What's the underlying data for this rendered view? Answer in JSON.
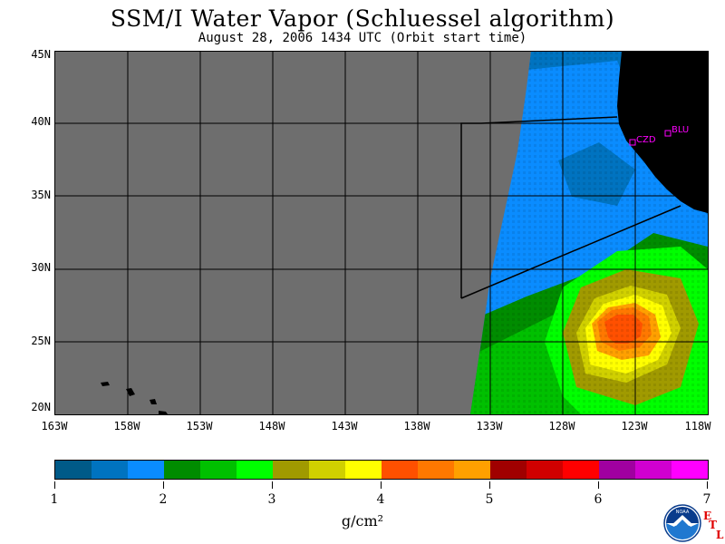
{
  "header": {
    "title": "SSM/I Water Vapor (Schluessel algorithm)",
    "subtitle": "August 28, 2006  1434 UTC  (Orbit start time)"
  },
  "map": {
    "lat_labels": [
      "45N",
      "40N",
      "35N",
      "30N",
      "25N",
      "20N"
    ],
    "lon_labels": [
      "163W",
      "158W",
      "153W",
      "148W",
      "143W",
      "138W",
      "133W",
      "128W",
      "123W",
      "118W"
    ],
    "stations": [
      {
        "label": "CZD"
      },
      {
        "label": "BLU"
      }
    ],
    "no_data_color": "#6e6e6e",
    "land_color": "#000000",
    "station_color": "#ff00ff"
  },
  "colorbar": {
    "colors": [
      "#005a88",
      "#0073c0",
      "#0a8cff",
      "#008c00",
      "#00c000",
      "#00ff00",
      "#a09a00",
      "#d0d000",
      "#ffff00",
      "#ff5000",
      "#ff7800",
      "#ffa000",
      "#a00000",
      "#d00000",
      "#ff0000",
      "#a000a0",
      "#d000d0",
      "#ff00ff"
    ],
    "tick_labels": [
      "1",
      "2",
      "3",
      "4",
      "5",
      "6",
      "7"
    ],
    "units": "g/cm²"
  },
  "logo": {
    "noaa_text": "NOAA",
    "etl_letters": [
      "E",
      "T",
      "L"
    ]
  }
}
